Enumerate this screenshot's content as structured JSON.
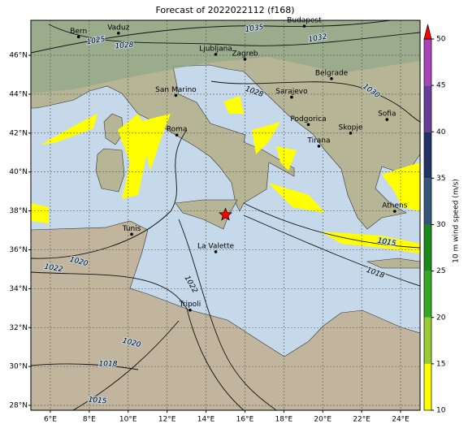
{
  "title": "Forecast of 2022022112 (f168)",
  "map": {
    "lonlim": [
      5,
      25
    ],
    "latlim": [
      27.75,
      47.8
    ],
    "xticks": [
      {
        "value": 6,
        "label": "6°E"
      },
      {
        "value": 8,
        "label": "8°E"
      },
      {
        "value": 10,
        "label": "10°E"
      },
      {
        "value": 12,
        "label": "12°E"
      },
      {
        "value": 14,
        "label": "14°E"
      },
      {
        "value": 16,
        "label": "16°E"
      },
      {
        "value": 18,
        "label": "18°E"
      },
      {
        "value": 20,
        "label": "20°E"
      },
      {
        "value": 22,
        "label": "22°E"
      },
      {
        "value": 24,
        "label": "24°E"
      }
    ],
    "yticks": [
      {
        "value": 28,
        "label": "28°N"
      },
      {
        "value": 30,
        "label": "30°N"
      },
      {
        "value": 32,
        "label": "32°N"
      },
      {
        "value": 34,
        "label": "34°N"
      },
      {
        "value": 36,
        "label": "36°N"
      },
      {
        "value": 38,
        "label": "38°N"
      },
      {
        "value": 40,
        "label": "40°N"
      },
      {
        "value": 42,
        "label": "42°N"
      },
      {
        "value": 44,
        "label": "44°N"
      },
      {
        "value": 46,
        "label": "46°N"
      }
    ],
    "grid": true,
    "cities": [
      {
        "name": "Bern",
        "lon": 7.45,
        "lat": 46.95
      },
      {
        "name": "Vaduz",
        "lon": 9.5,
        "lat": 47.14
      },
      {
        "name": "Budapest",
        "lon": 19.05,
        "lat": 47.5
      },
      {
        "name": "Ljubljana",
        "lon": 14.5,
        "lat": 46.05
      },
      {
        "name": "Zagreb",
        "lon": 16.0,
        "lat": 45.8
      },
      {
        "name": "Belgrade",
        "lon": 20.45,
        "lat": 44.8
      },
      {
        "name": "San Marino",
        "lon": 12.45,
        "lat": 43.94
      },
      {
        "name": "Sarajevo",
        "lon": 18.4,
        "lat": 43.85
      },
      {
        "name": "Sofia",
        "lon": 23.3,
        "lat": 42.7
      },
      {
        "name": "Podgorica",
        "lon": 19.26,
        "lat": 42.44
      },
      {
        "name": "Skopje",
        "lon": 21.43,
        "lat": 42.0
      },
      {
        "name": "Roma",
        "lon": 12.5,
        "lat": 41.9
      },
      {
        "name": "Tirana",
        "lon": 19.8,
        "lat": 41.33
      },
      {
        "name": "Athens",
        "lon": 23.7,
        "lat": 37.98
      },
      {
        "name": "Tunis",
        "lon": 10.18,
        "lat": 36.8
      },
      {
        "name": "La Valette",
        "lon": 14.5,
        "lat": 35.9
      },
      {
        "name": "Tripoli",
        "lon": 13.18,
        "lat": 32.9
      }
    ],
    "star": {
      "lon": 15.0,
      "lat": 37.8,
      "color": "#ff0000"
    },
    "isobar_labels": [
      1035,
      1032,
      1025,
      1028,
      1030,
      1028,
      1022,
      1020,
      1020,
      1018,
      1015,
      1022,
      1015,
      1018
    ]
  },
  "colorbar": {
    "label": "10 m wind speed (m/s)",
    "lim": [
      10,
      50
    ],
    "ticks": [
      10,
      15,
      20,
      25,
      30,
      35,
      40,
      45,
      50
    ],
    "colors": [
      "#ffff00",
      "#99cc33",
      "#33aa22",
      "#1a8a1a",
      "#33557a",
      "#223366",
      "#6a3d9a",
      "#aa44bb"
    ],
    "extend_color": "#ff0000"
  }
}
